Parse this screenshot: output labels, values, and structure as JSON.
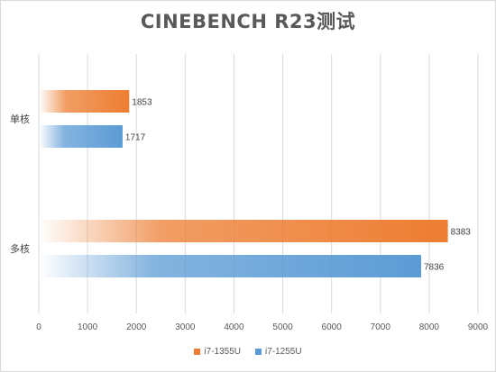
{
  "chart_data": {
    "type": "bar",
    "orientation": "horizontal",
    "title": "CINEBENCH R23测试",
    "categories": [
      "单核",
      "多核"
    ],
    "series": [
      {
        "name": "i7-1355U",
        "values": [
          1853,
          8383
        ],
        "color": "#ed7d31"
      },
      {
        "name": "i7-1255U",
        "values": [
          1717,
          7836
        ],
        "color": "#5b9bd5"
      }
    ],
    "xlim": [
      0,
      9000
    ],
    "xticks": [
      0,
      1000,
      2000,
      3000,
      4000,
      5000,
      6000,
      7000,
      8000,
      9000
    ],
    "grid": true,
    "legend": "bottom",
    "data_labels": true
  }
}
